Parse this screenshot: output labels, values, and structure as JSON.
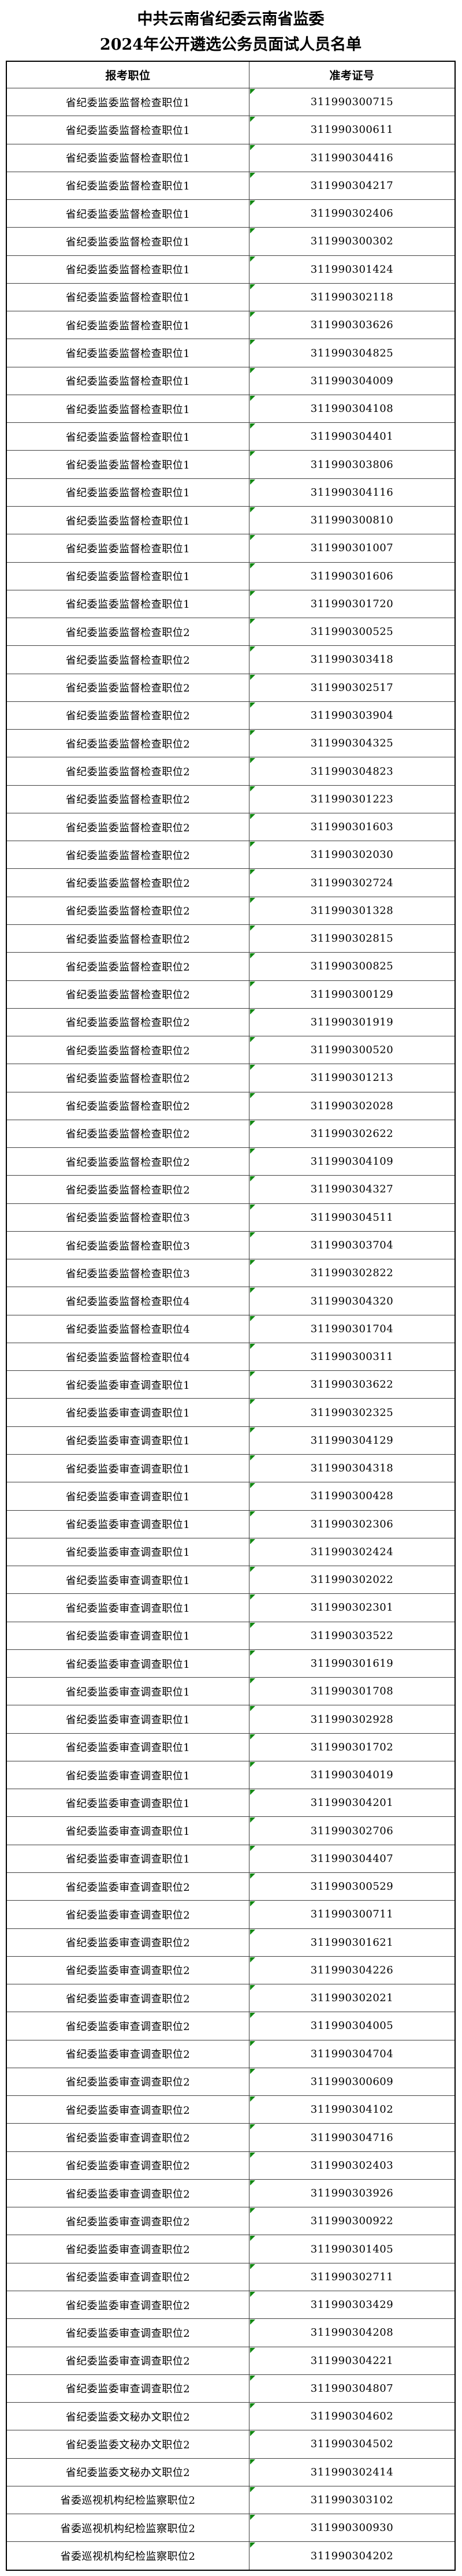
{
  "title": {
    "line1": "中共云南省纪委云南省监委",
    "line2": "2024年公开遴选公务员面试人员名单"
  },
  "table": {
    "headers": [
      "报考职位",
      "准考证号"
    ],
    "rows": [
      [
        "省纪委监委监督检查职位1",
        "311990300715"
      ],
      [
        "省纪委监委监督检查职位1",
        "311990300611"
      ],
      [
        "省纪委监委监督检查职位1",
        "311990304416"
      ],
      [
        "省纪委监委监督检查职位1",
        "311990304217"
      ],
      [
        "省纪委监委监督检查职位1",
        "311990302406"
      ],
      [
        "省纪委监委监督检查职位1",
        "311990300302"
      ],
      [
        "省纪委监委监督检查职位1",
        "311990301424"
      ],
      [
        "省纪委监委监督检查职位1",
        "311990302118"
      ],
      [
        "省纪委监委监督检查职位1",
        "311990303626"
      ],
      [
        "省纪委监委监督检查职位1",
        "311990304825"
      ],
      [
        "省纪委监委监督检查职位1",
        "311990304009"
      ],
      [
        "省纪委监委监督检查职位1",
        "311990304108"
      ],
      [
        "省纪委监委监督检查职位1",
        "311990304401"
      ],
      [
        "省纪委监委监督检查职位1",
        "311990303806"
      ],
      [
        "省纪委监委监督检查职位1",
        "311990304116"
      ],
      [
        "省纪委监委监督检查职位1",
        "311990300810"
      ],
      [
        "省纪委监委监督检查职位1",
        "311990301007"
      ],
      [
        "省纪委监委监督检查职位1",
        "311990301606"
      ],
      [
        "省纪委监委监督检查职位1",
        "311990301720"
      ],
      [
        "省纪委监委监督检查职位2",
        "311990300525"
      ],
      [
        "省纪委监委监督检查职位2",
        "311990303418"
      ],
      [
        "省纪委监委监督检查职位2",
        "311990302517"
      ],
      [
        "省纪委监委监督检查职位2",
        "311990303904"
      ],
      [
        "省纪委监委监督检查职位2",
        "311990304325"
      ],
      [
        "省纪委监委监督检查职位2",
        "311990304823"
      ],
      [
        "省纪委监委监督检查职位2",
        "311990301223"
      ],
      [
        "省纪委监委监督检查职位2",
        "311990301603"
      ],
      [
        "省纪委监委监督检查职位2",
        "311990302030"
      ],
      [
        "省纪委监委监督检查职位2",
        "311990302724"
      ],
      [
        "省纪委监委监督检查职位2",
        "311990301328"
      ],
      [
        "省纪委监委监督检查职位2",
        "311990302815"
      ],
      [
        "省纪委监委监督检查职位2",
        "311990300825"
      ],
      [
        "省纪委监委监督检查职位2",
        "311990300129"
      ],
      [
        "省纪委监委监督检查职位2",
        "311990301919"
      ],
      [
        "省纪委监委监督检查职位2",
        "311990300520"
      ],
      [
        "省纪委监委监督检查职位2",
        "311990301213"
      ],
      [
        "省纪委监委监督检查职位2",
        "311990302028"
      ],
      [
        "省纪委监委监督检查职位2",
        "311990302622"
      ],
      [
        "省纪委监委监督检查职位2",
        "311990304109"
      ],
      [
        "省纪委监委监督检查职位2",
        "311990304327"
      ],
      [
        "省纪委监委监督检查职位3",
        "311990304511"
      ],
      [
        "省纪委监委监督检查职位3",
        "311990303704"
      ],
      [
        "省纪委监委监督检查职位3",
        "311990302822"
      ],
      [
        "省纪委监委监督检查职位4",
        "311990304320"
      ],
      [
        "省纪委监委监督检查职位4",
        "311990301704"
      ],
      [
        "省纪委监委监督检查职位4",
        "311990300311"
      ],
      [
        "省纪委监委审查调查职位1",
        "311990303622"
      ],
      [
        "省纪委监委审查调查职位1",
        "311990302325"
      ],
      [
        "省纪委监委审查调查职位1",
        "311990304129"
      ],
      [
        "省纪委监委审查调查职位1",
        "311990304318"
      ],
      [
        "省纪委监委审查调查职位1",
        "311990300428"
      ],
      [
        "省纪委监委审查调查职位1",
        "311990302306"
      ],
      [
        "省纪委监委审查调查职位1",
        "311990302424"
      ],
      [
        "省纪委监委审查调查职位1",
        "311990302022"
      ],
      [
        "省纪委监委审查调查职位1",
        "311990302301"
      ],
      [
        "省纪委监委审查调查职位1",
        "311990303522"
      ],
      [
        "省纪委监委审查调查职位1",
        "311990301619"
      ],
      [
        "省纪委监委审查调查职位1",
        "311990301708"
      ],
      [
        "省纪委监委审查调查职位1",
        "311990302928"
      ],
      [
        "省纪委监委审查调查职位1",
        "311990301702"
      ],
      [
        "省纪委监委审查调查职位1",
        "311990304019"
      ],
      [
        "省纪委监委审查调查职位1",
        "311990304201"
      ],
      [
        "省纪委监委审查调查职位1",
        "311990302706"
      ],
      [
        "省纪委监委审查调查职位1",
        "311990304407"
      ],
      [
        "省纪委监委审查调查职位2",
        "311990300529"
      ],
      [
        "省纪委监委审查调查职位2",
        "311990300711"
      ],
      [
        "省纪委监委审查调查职位2",
        "311990301621"
      ],
      [
        "省纪委监委审查调查职位2",
        "311990304226"
      ],
      [
        "省纪委监委审查调查职位2",
        "311990302021"
      ],
      [
        "省纪委监委审查调查职位2",
        "311990304005"
      ],
      [
        "省纪委监委审查调查职位2",
        "311990304704"
      ],
      [
        "省纪委监委审查调查职位2",
        "311990300609"
      ],
      [
        "省纪委监委审查调查职位2",
        "311990304102"
      ],
      [
        "省纪委监委审查调查职位2",
        "311990304716"
      ],
      [
        "省纪委监委审查调查职位2",
        "311990302403"
      ],
      [
        "省纪委监委审查调查职位2",
        "311990303926"
      ],
      [
        "省纪委监委审查调查职位2",
        "311990300922"
      ],
      [
        "省纪委监委审查调查职位2",
        "311990301405"
      ],
      [
        "省纪委监委审查调查职位2",
        "311990302711"
      ],
      [
        "省纪委监委审查调查职位2",
        "311990303429"
      ],
      [
        "省纪委监委审查调查职位2",
        "311990304208"
      ],
      [
        "省纪委监委审查调查职位2",
        "311990304221"
      ],
      [
        "省纪委监委审查调查职位2",
        "311990304807"
      ],
      [
        "省纪委监委文秘办文职位2",
        "311990304602"
      ],
      [
        "省纪委监委文秘办文职位2",
        "311990304502"
      ],
      [
        "省纪委监委文秘办文职位2",
        "311990302414"
      ],
      [
        "省委巡视机构纪检监察职位2",
        "311990303102"
      ],
      [
        "省委巡视机构纪检监察职位2",
        "311990300930"
      ],
      [
        "省委巡视机构纪检监察职位2",
        "311990304202"
      ]
    ]
  },
  "colors": {
    "cell_marker_green": "#128712",
    "grid_line": "#3f3f3f",
    "outer_border": "#000000"
  }
}
